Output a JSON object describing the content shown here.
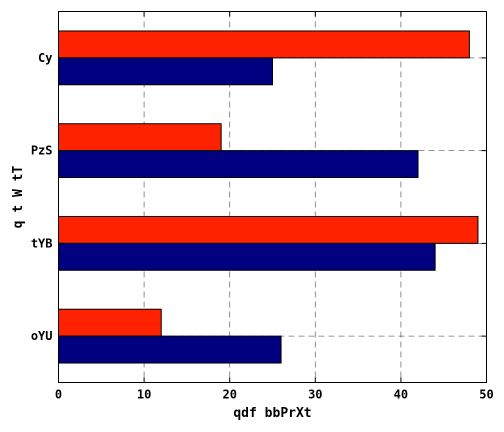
{
  "chart_data": {
    "type": "bar",
    "orientation": "horizontal",
    "title": "",
    "xlabel": "qdf bbPrXt",
    "ylabel": "q t W tT",
    "categories": [
      "Cy",
      "PzS",
      "tYB",
      "oYU"
    ],
    "xlim": [
      0,
      50
    ],
    "xticks": [
      0,
      10,
      20,
      30,
      40,
      50
    ],
    "grid": true,
    "series": [
      {
        "color": "#ff2200",
        "values": [
          48,
          19,
          49,
          12
        ]
      },
      {
        "color": "#000080",
        "values": [
          25,
          42,
          44,
          26
        ]
      }
    ]
  }
}
